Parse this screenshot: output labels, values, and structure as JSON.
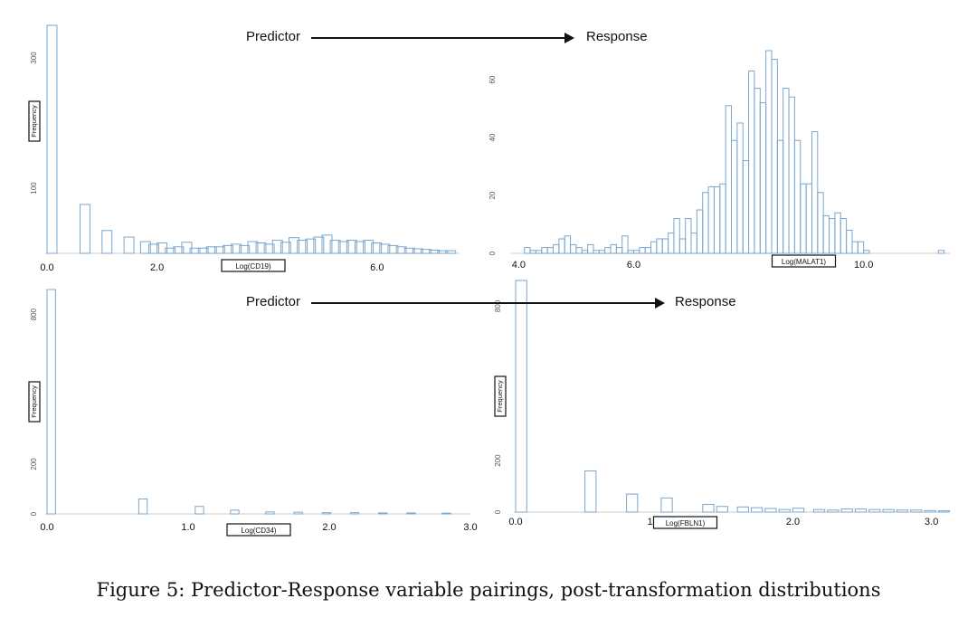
{
  "caption": "Figure 5: Predictor-Response variable pairings, post-transformation distributions",
  "pairs": [
    {
      "predictor_label": "Predictor",
      "response_label": "Response"
    },
    {
      "predictor_label": "Predictor",
      "response_label": "Response"
    }
  ],
  "colors": {
    "bar_stroke": "#7aa6cc",
    "text": "#111111",
    "axis": "#555555"
  },
  "chart_data": [
    {
      "type": "bar",
      "xlabel": "Log(CD19)",
      "ylabel": "Frequency",
      "xlim": [
        0,
        7.5
      ],
      "ylim": [
        0,
        350
      ],
      "xticks": [
        0,
        2,
        6
      ],
      "xtick_labels": [
        "0.0",
        "2.0",
        "6.0"
      ],
      "yticks": [
        100,
        300
      ],
      "ytick_labels": [
        "100",
        "300"
      ],
      "bin_width": 0.18,
      "bins": [
        [
          0.0,
          350
        ],
        [
          0.6,
          75
        ],
        [
          1.0,
          35
        ],
        [
          1.4,
          25
        ],
        [
          1.7,
          18
        ],
        [
          1.85,
          14
        ],
        [
          2.0,
          16
        ],
        [
          2.15,
          8
        ],
        [
          2.3,
          10
        ],
        [
          2.45,
          17
        ],
        [
          2.6,
          8
        ],
        [
          2.75,
          8
        ],
        [
          2.9,
          10
        ],
        [
          3.05,
          10
        ],
        [
          3.2,
          12
        ],
        [
          3.35,
          14
        ],
        [
          3.5,
          12
        ],
        [
          3.65,
          18
        ],
        [
          3.8,
          16
        ],
        [
          3.95,
          14
        ],
        [
          4.1,
          20
        ],
        [
          4.25,
          17
        ],
        [
          4.4,
          24
        ],
        [
          4.55,
          20
        ],
        [
          4.7,
          22
        ],
        [
          4.85,
          25
        ],
        [
          5.0,
          28
        ],
        [
          5.15,
          20
        ],
        [
          5.3,
          18
        ],
        [
          5.45,
          20
        ],
        [
          5.6,
          18
        ],
        [
          5.75,
          20
        ],
        [
          5.9,
          16
        ],
        [
          6.05,
          14
        ],
        [
          6.2,
          12
        ],
        [
          6.35,
          10
        ],
        [
          6.5,
          8
        ],
        [
          6.65,
          7
        ],
        [
          6.8,
          6
        ],
        [
          6.95,
          5
        ],
        [
          7.1,
          4
        ],
        [
          7.25,
          4
        ]
      ]
    },
    {
      "type": "bar",
      "xlabel": "Log(MALAT1)",
      "ylabel": "",
      "xlim": [
        3.9,
        11.5
      ],
      "ylim": [
        0,
        75
      ],
      "xticks": [
        4,
        6,
        10
      ],
      "xtick_labels": [
        "4.0",
        "6.0",
        "10.0"
      ],
      "yticks": [
        0,
        20,
        40,
        60
      ],
      "ytick_labels": [
        "0",
        "20",
        "40",
        "60"
      ],
      "bin_width": 0.1,
      "bins": [
        [
          4.1,
          2
        ],
        [
          4.2,
          1
        ],
        [
          4.3,
          1
        ],
        [
          4.4,
          2
        ],
        [
          4.5,
          2
        ],
        [
          4.6,
          3
        ],
        [
          4.7,
          5
        ],
        [
          4.8,
          6
        ],
        [
          4.9,
          3
        ],
        [
          5.0,
          2
        ],
        [
          5.1,
          1
        ],
        [
          5.2,
          3
        ],
        [
          5.3,
          1
        ],
        [
          5.4,
          1
        ],
        [
          5.5,
          2
        ],
        [
          5.6,
          3
        ],
        [
          5.7,
          2
        ],
        [
          5.8,
          6
        ],
        [
          5.9,
          1
        ],
        [
          6.0,
          1
        ],
        [
          6.1,
          2
        ],
        [
          6.2,
          2
        ],
        [
          6.3,
          4
        ],
        [
          6.4,
          5
        ],
        [
          6.5,
          5
        ],
        [
          6.6,
          7
        ],
        [
          6.7,
          12
        ],
        [
          6.8,
          5
        ],
        [
          6.9,
          12
        ],
        [
          7.0,
          7
        ],
        [
          7.1,
          15
        ],
        [
          7.2,
          21
        ],
        [
          7.3,
          23
        ],
        [
          7.4,
          23
        ],
        [
          7.5,
          24
        ],
        [
          7.6,
          51
        ],
        [
          7.7,
          39
        ],
        [
          7.8,
          45
        ],
        [
          7.9,
          32
        ],
        [
          8.0,
          63
        ],
        [
          8.1,
          57
        ],
        [
          8.2,
          52
        ],
        [
          8.3,
          70
        ],
        [
          8.4,
          67
        ],
        [
          8.5,
          39
        ],
        [
          8.6,
          57
        ],
        [
          8.7,
          54
        ],
        [
          8.8,
          39
        ],
        [
          8.9,
          24
        ],
        [
          9.0,
          24
        ],
        [
          9.1,
          42
        ],
        [
          9.2,
          21
        ],
        [
          9.3,
          13
        ],
        [
          9.4,
          12
        ],
        [
          9.5,
          14
        ],
        [
          9.6,
          12
        ],
        [
          9.7,
          8
        ],
        [
          9.8,
          4
        ],
        [
          9.9,
          4
        ],
        [
          10.0,
          1
        ],
        [
          11.3,
          1
        ]
      ]
    },
    {
      "type": "bar",
      "xlabel": "Log(CD34)",
      "ylabel": "Frequency",
      "xlim": [
        0,
        3.0
      ],
      "ylim": [
        0,
        900
      ],
      "xticks": [
        0,
        1,
        2,
        3
      ],
      "xtick_labels": [
        "0.0",
        "1.0",
        "2.0",
        "3.0"
      ],
      "yticks": [
        0,
        200,
        800
      ],
      "ytick_labels": [
        "0",
        "200",
        "800"
      ],
      "bin_width": 0.06,
      "bins": [
        [
          0.0,
          900
        ],
        [
          0.65,
          60
        ],
        [
          1.05,
          30
        ],
        [
          1.3,
          15
        ],
        [
          1.55,
          8
        ],
        [
          1.75,
          7
        ],
        [
          1.95,
          5
        ],
        [
          2.15,
          5
        ],
        [
          2.35,
          4
        ],
        [
          2.55,
          4
        ],
        [
          2.8,
          3
        ]
      ]
    },
    {
      "type": "bar",
      "xlabel": "Log(FBLN1)",
      "ylabel": "Frequency",
      "xlim": [
        0,
        3.1
      ],
      "ylim": [
        0,
        900
      ],
      "xticks": [
        0,
        1,
        2,
        3
      ],
      "xtick_labels": [
        "0.0",
        "1.0",
        "2.0",
        "3.0"
      ],
      "yticks": [
        0,
        200,
        800
      ],
      "ytick_labels": [
        "0",
        "200",
        "800"
      ],
      "bin_width": 0.08,
      "bins": [
        [
          0.0,
          900
        ],
        [
          0.5,
          160
        ],
        [
          0.8,
          70
        ],
        [
          1.05,
          55
        ],
        [
          1.35,
          30
        ],
        [
          1.45,
          22
        ],
        [
          1.6,
          20
        ],
        [
          1.7,
          17
        ],
        [
          1.8,
          14
        ],
        [
          1.9,
          10
        ],
        [
          2.0,
          15
        ],
        [
          2.15,
          10
        ],
        [
          2.25,
          8
        ],
        [
          2.35,
          12
        ],
        [
          2.45,
          12
        ],
        [
          2.55,
          10
        ],
        [
          2.65,
          10
        ],
        [
          2.75,
          8
        ],
        [
          2.85,
          8
        ],
        [
          2.95,
          6
        ],
        [
          3.05,
          5
        ]
      ]
    }
  ]
}
